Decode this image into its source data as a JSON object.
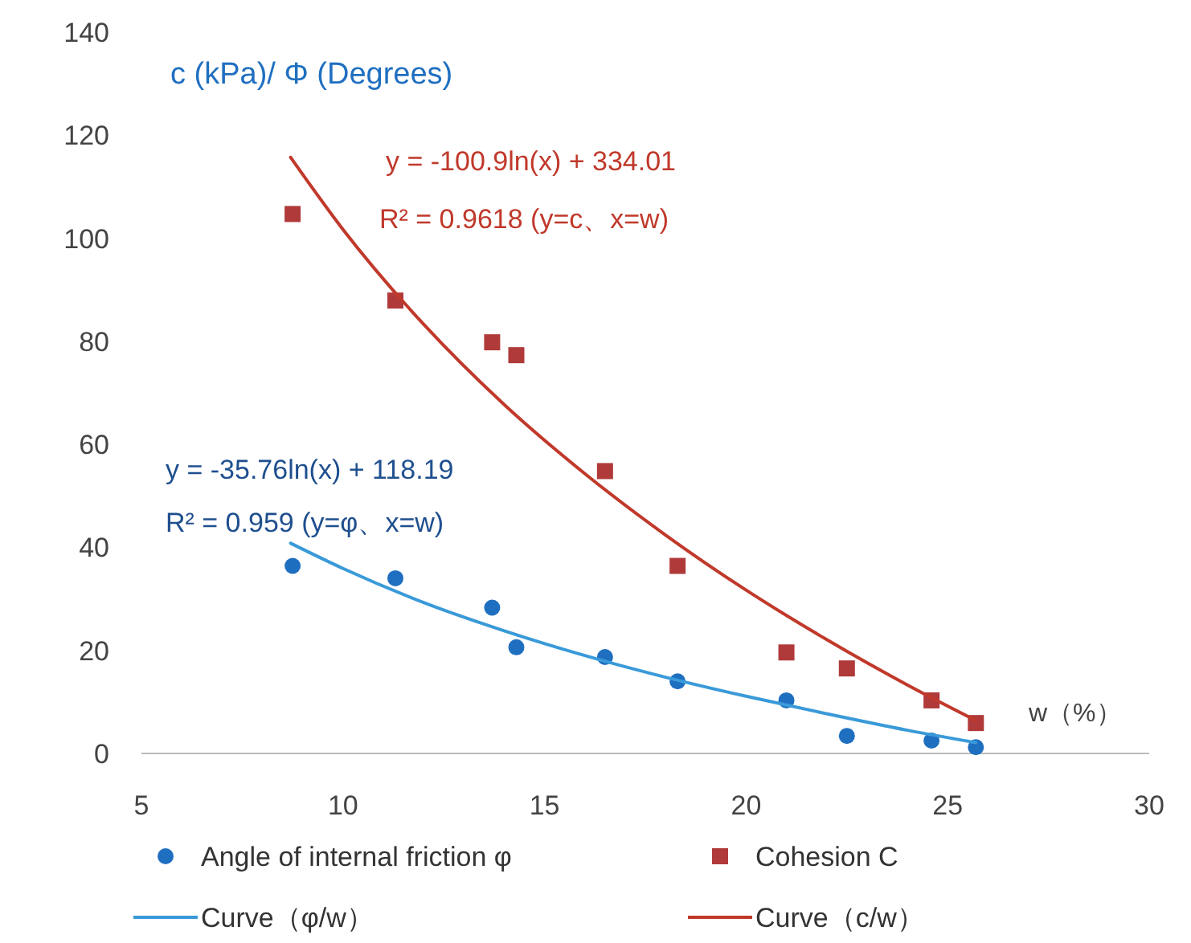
{
  "chart_data": {
    "type": "scatter",
    "xlabel": "w（%）",
    "ylabel": "c (kPa)/ Φ (Degrees)",
    "xlim": [
      5,
      30
    ],
    "xticks": [
      5,
      10,
      15,
      20,
      25,
      30
    ],
    "ylim": [
      0,
      140
    ],
    "yticks": [
      0,
      20,
      40,
      60,
      80,
      100,
      120,
      140
    ],
    "grid": false,
    "legend": "bottom",
    "series": [
      {
        "name": "Angle of internal friction φ",
        "marker": "circle",
        "color": "#1f6fc0",
        "x": [
          8.75,
          11.3,
          13.7,
          14.3,
          16.5,
          18.3,
          21.0,
          22.5,
          24.6,
          25.7
        ],
        "values": [
          36.4,
          34,
          28.3,
          20.6,
          18.7,
          14,
          10.3,
          3.4,
          2.5,
          1.2
        ]
      },
      {
        "name": "Cohesion C",
        "marker": "square",
        "color": "#b03a3a",
        "x": [
          8.75,
          11.3,
          13.7,
          14.3,
          16.5,
          18.3,
          21.0,
          22.5,
          24.6,
          25.7
        ],
        "values": [
          104.7,
          87.9,
          79.8,
          77.3,
          54.8,
          36.4,
          19.6,
          16.5,
          10.3,
          5.9
        ]
      },
      {
        "name": "Curve（φ/w）",
        "type": "line",
        "marker": "none",
        "line_style": "solid",
        "color": "#3a9ad9",
        "x": [
          8.7,
          10,
          12,
          14,
          16,
          18,
          20,
          22,
          24,
          25.7
        ],
        "values": [
          40.8,
          35.9,
          29.3,
          23.8,
          19,
          14.8,
          11.1,
          7.7,
          4.5,
          2.1
        ]
      },
      {
        "name": "Curve（c/w）",
        "type": "line",
        "marker": "none",
        "line_style": "solid",
        "color": "#c0392b",
        "x": [
          8.7,
          10,
          12,
          14,
          16,
          18,
          20,
          22,
          24,
          25.7
        ],
        "values": [
          115.7,
          101.7,
          83.3,
          67.7,
          54.3,
          42.4,
          31.7,
          22.1,
          13.3,
          6.4
        ]
      }
    ],
    "annotations": [
      "y = -100.9ln(x) + 334.01",
      "R² = 0.9618  (y=c、x=w)",
      "y = -35.76ln(x) + 118.19",
      "R² = 0.959  (y=φ、x=w)"
    ]
  }
}
